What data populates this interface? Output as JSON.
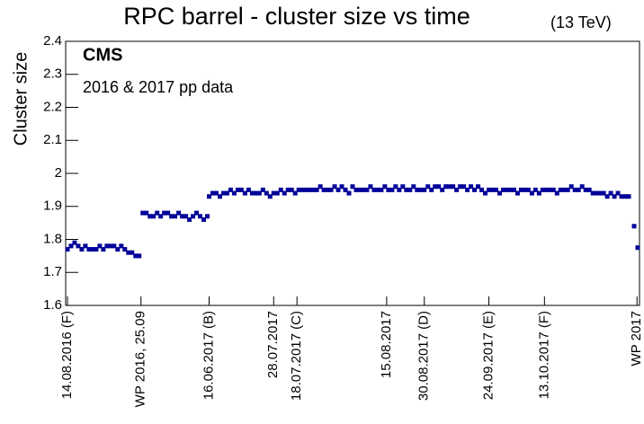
{
  "chart_data": {
    "type": "scatter",
    "title": "RPC barrel - cluster size vs time",
    "subtitle": "(13 TeV)",
    "annotations": [
      "CMS",
      "2016 & 2017 pp data"
    ],
    "y_label": "Cluster size",
    "color": "#000099",
    "ylim": [
      1.6,
      2.4
    ],
    "yticks": [
      1.6,
      1.7,
      1.8,
      1.9,
      2,
      2.1,
      2.2,
      2.3,
      2.4
    ],
    "xlim": [
      0,
      160
    ],
    "xticks": [
      {
        "value": 0.5,
        "label": "14.08.2016 (F)"
      },
      {
        "value": 21,
        "label": "WP 2016, 25.09"
      },
      {
        "value": 40,
        "label": "16.06.2017 (B)"
      },
      {
        "value": 58,
        "label": "28.07.2017"
      },
      {
        "value": 64.5,
        "label": "18.07.2017 (C)"
      },
      {
        "value": 89.5,
        "label": "15.08.2017"
      },
      {
        "value": 100,
        "label": "30.08.2017 (D)"
      },
      {
        "value": 118,
        "label": "24.09.2017 (E)"
      },
      {
        "value": 133.5,
        "label": "13.10.2017 (F)"
      },
      {
        "value": 159.3,
        "label": "WP 2017"
      }
    ],
    "series": [
      {
        "name": "Cluster size",
        "x": [
          0.5,
          1.5,
          2.5,
          3.5,
          4.5,
          5.5,
          6.5,
          7.5,
          8.5,
          9.5,
          10.5,
          11.5,
          12.5,
          13.5,
          14.5,
          15.5,
          16.5,
          17.5,
          18.5,
          19.5,
          20.5,
          21.5,
          22.5,
          23.5,
          24.5,
          25.5,
          26.5,
          27.5,
          28.5,
          29.5,
          30.5,
          31.5,
          32.5,
          33.5,
          34.5,
          35.5,
          36.5,
          37.5,
          38.5,
          39.5,
          40,
          41,
          42,
          43,
          44,
          45,
          46,
          47,
          48,
          49,
          50,
          51,
          52,
          53,
          54,
          55,
          56,
          57,
          58,
          59,
          60,
          61,
          62,
          63,
          64,
          65,
          66,
          67,
          68,
          69,
          70,
          71,
          72,
          73,
          74,
          75,
          76,
          77,
          78,
          79,
          80,
          81,
          82,
          83,
          84,
          85,
          86,
          87,
          88,
          89,
          90,
          91,
          92,
          93,
          94,
          95,
          96,
          97,
          98,
          99,
          100,
          101,
          102,
          103,
          104,
          105,
          106,
          107,
          108,
          109,
          110,
          111,
          112,
          113,
          114,
          115,
          116,
          117,
          118,
          119,
          120,
          121,
          122,
          123,
          124,
          125,
          126,
          127,
          128,
          129,
          130,
          131,
          132,
          133,
          134,
          135,
          136,
          137,
          138,
          139,
          140,
          141,
          142,
          143,
          144,
          145,
          146,
          147,
          148,
          149,
          150,
          151,
          152,
          153,
          154,
          155,
          156,
          157,
          158.5,
          159.5
        ],
        "values": [
          1.77,
          1.78,
          1.79,
          1.78,
          1.77,
          1.78,
          1.77,
          1.77,
          1.77,
          1.78,
          1.77,
          1.78,
          1.78,
          1.78,
          1.77,
          1.78,
          1.77,
          1.76,
          1.76,
          1.75,
          1.75,
          1.88,
          1.88,
          1.87,
          1.87,
          1.88,
          1.87,
          1.88,
          1.88,
          1.87,
          1.87,
          1.88,
          1.87,
          1.87,
          1.86,
          1.87,
          1.88,
          1.87,
          1.86,
          1.87,
          1.93,
          1.94,
          1.94,
          1.93,
          1.94,
          1.94,
          1.95,
          1.94,
          1.95,
          1.95,
          1.94,
          1.95,
          1.94,
          1.94,
          1.94,
          1.95,
          1.94,
          1.93,
          1.94,
          1.94,
          1.95,
          1.94,
          1.95,
          1.95,
          1.94,
          1.95,
          1.95,
          1.95,
          1.95,
          1.95,
          1.95,
          1.96,
          1.95,
          1.95,
          1.95,
          1.96,
          1.95,
          1.96,
          1.95,
          1.94,
          1.96,
          1.95,
          1.95,
          1.95,
          1.95,
          1.96,
          1.95,
          1.95,
          1.95,
          1.96,
          1.95,
          1.95,
          1.96,
          1.95,
          1.96,
          1.95,
          1.95,
          1.96,
          1.95,
          1.95,
          1.95,
          1.96,
          1.95,
          1.96,
          1.96,
          1.95,
          1.96,
          1.96,
          1.96,
          1.95,
          1.96,
          1.96,
          1.95,
          1.96,
          1.95,
          1.96,
          1.95,
          1.94,
          1.95,
          1.95,
          1.95,
          1.94,
          1.95,
          1.95,
          1.95,
          1.95,
          1.94,
          1.95,
          1.95,
          1.95,
          1.94,
          1.95,
          1.94,
          1.95,
          1.95,
          1.95,
          1.95,
          1.94,
          1.95,
          1.95,
          1.95,
          1.96,
          1.95,
          1.95,
          1.96,
          1.95,
          1.95,
          1.94,
          1.94,
          1.94,
          1.94,
          1.93,
          1.94,
          1.93,
          1.94,
          1.93,
          1.93,
          1.93,
          1.84,
          1.775
        ]
      }
    ]
  }
}
